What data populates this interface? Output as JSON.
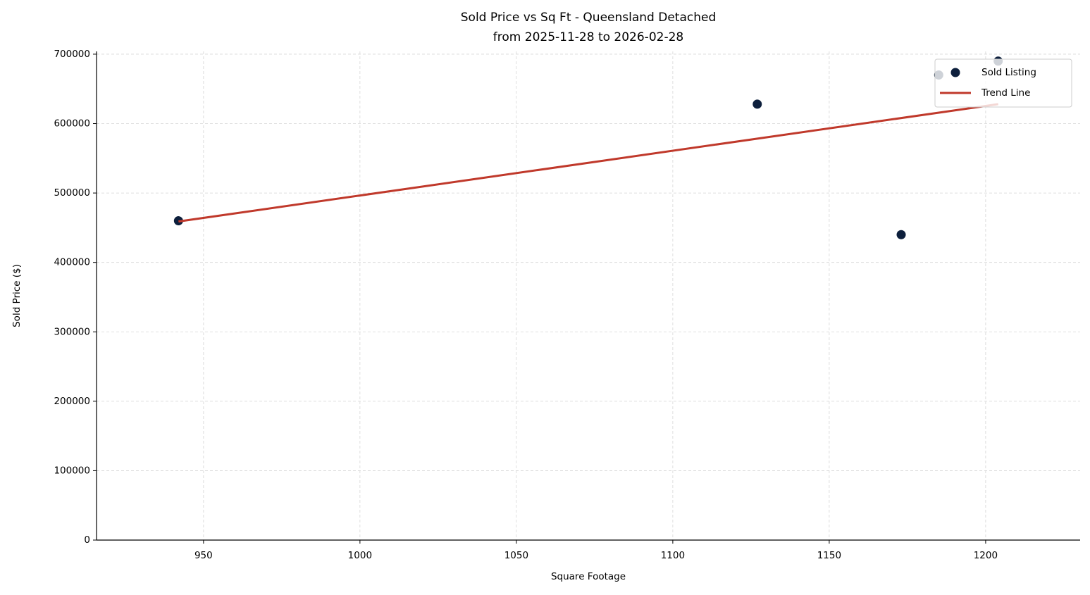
{
  "chart_data": {
    "type": "scatter",
    "title": "Sold Price vs Sq Ft - Queensland Detached",
    "subtitle": "from 2025-11-28 to 2026-02-28",
    "x_label": "Square Footage",
    "y_label": "Sold Price ($)",
    "xlim": [
      915.8,
      1230.2
    ],
    "ylim": [
      0,
      704000
    ],
    "xticks": [
      950,
      1000,
      1050,
      1100,
      1150,
      1200
    ],
    "yticks": [
      0,
      100000,
      200000,
      300000,
      400000,
      500000,
      600000,
      700000
    ],
    "grid": true,
    "legend": "upper right",
    "series": [
      {
        "name": "Sold Listing",
        "type": "scatter",
        "color": "#0d1f3c",
        "x": [
          942,
          1127,
          1173,
          1185,
          1204
        ],
        "y": [
          460000,
          628000,
          440000,
          670000,
          690000
        ]
      },
      {
        "name": "Trend Line",
        "type": "line",
        "color": "#c0392b",
        "x": [
          942,
          1204
        ],
        "y": [
          459000,
          628000
        ]
      }
    ]
  }
}
